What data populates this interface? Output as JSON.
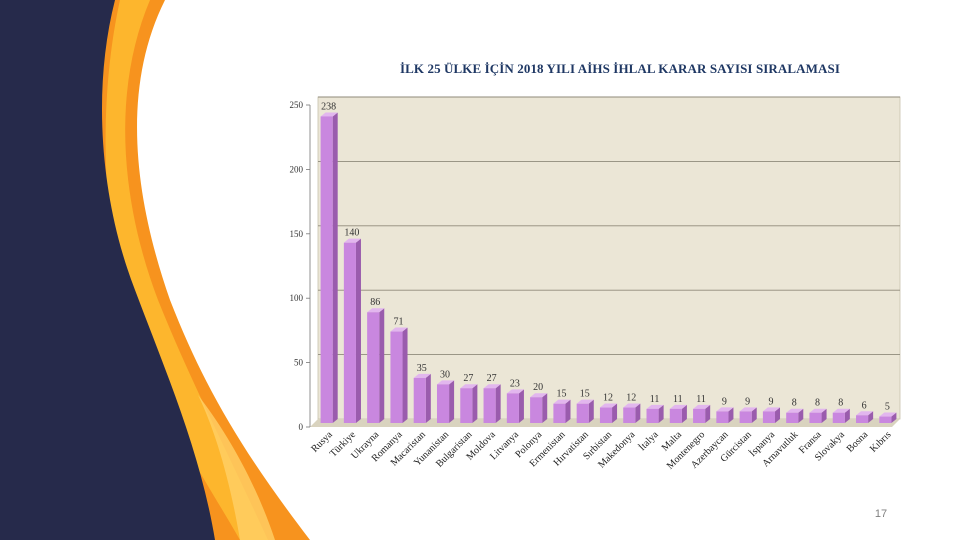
{
  "slide": {
    "page_number": "17"
  },
  "colors": {
    "navy": "#262a4b",
    "orange": "#f7931e",
    "orange_light": "#ffc233",
    "orange_dark": "#e8620c",
    "plot_bg": "#ebe6d6",
    "bar": "#c987df",
    "grid": "#8f8a7a"
  },
  "chart_data": {
    "type": "bar",
    "title": "İLK 25 ÜLKE İÇİN 2018 YILI AİHS İHLAL KARAR SAYISI SIRALAMASI",
    "xlabel": "",
    "ylabel": "",
    "ylim": [
      0,
      250
    ],
    "yticks": [
      0,
      50,
      100,
      150,
      200,
      250
    ],
    "grid": true,
    "legend": "none",
    "categories": [
      "Rusya",
      "Türkiye",
      "Ukrayna",
      "Romanya",
      "Macaristan",
      "Yunanistan",
      "Bulgaristan",
      "Moldova",
      "Litvanya",
      "Polonya",
      "Ermenistan",
      "Hırvatistan",
      "Sırbistan",
      "Makedonya",
      "İtalya",
      "Malta",
      "Montenegro",
      "Azerbaycan",
      "Gürcistan",
      "İspanya",
      "Arnavutluk",
      "Fransa",
      "Slovakya",
      "Bosna",
      "Kıbrıs"
    ],
    "values": [
      238,
      140,
      86,
      71,
      35,
      30,
      27,
      27,
      23,
      20,
      15,
      15,
      12,
      12,
      11,
      11,
      11,
      9,
      9,
      9,
      8,
      8,
      8,
      6,
      5
    ]
  }
}
